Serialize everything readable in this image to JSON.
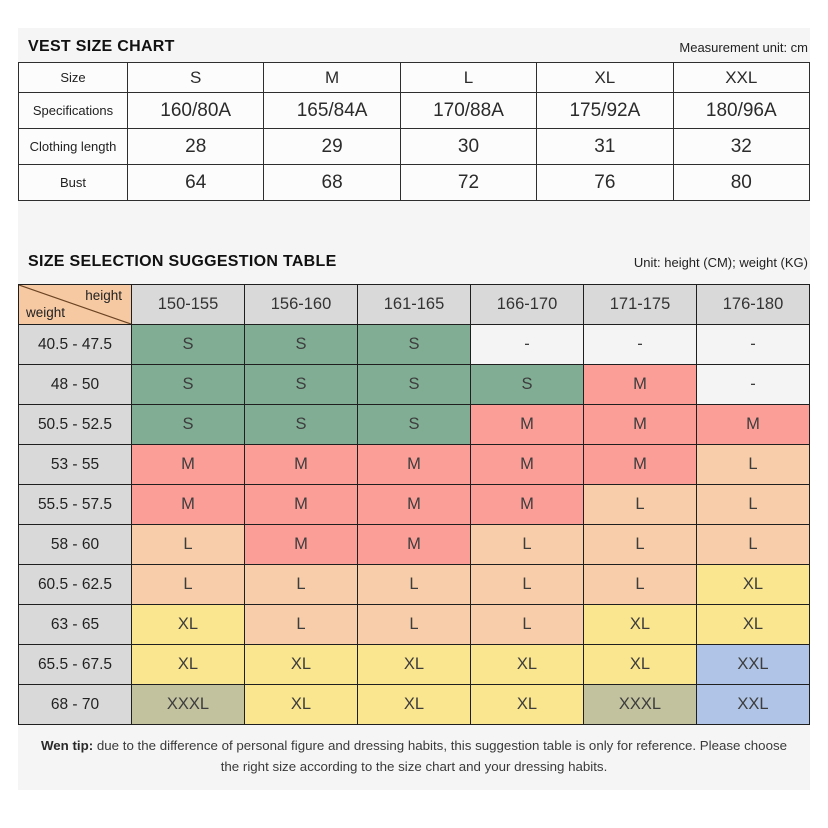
{
  "page": {
    "bg": "#ffffff",
    "panel_bg": "#f5f5f5"
  },
  "size_chart": {
    "title": "VEST SIZE CHART",
    "unit_note": "Measurement unit: cm",
    "rows": [
      {
        "label": "Size",
        "values": [
          "S",
          "M",
          "L",
          "XL",
          "XXL"
        ]
      },
      {
        "label": "Specifications",
        "values": [
          "160/80A",
          "165/84A",
          "170/88A",
          "175/92A",
          "180/96A"
        ]
      },
      {
        "label": "Clothing length",
        "values": [
          "28",
          "29",
          "30",
          "31",
          "32"
        ]
      },
      {
        "label": "Bust",
        "values": [
          "64",
          "68",
          "72",
          "76",
          "80"
        ]
      }
    ]
  },
  "suggestion_table": {
    "title": "SIZE SELECTION SUGGESTION TABLE",
    "unit_note": "Unit: height (CM); weight (KG)",
    "corner": {
      "top": "height",
      "bottom": "weight"
    },
    "columns": [
      "150-155",
      "156-160",
      "161-165",
      "166-170",
      "171-175",
      "176-180"
    ],
    "rows": [
      {
        "weight": "40.5 - 47.5",
        "cells": [
          "S",
          "S",
          "S",
          "-",
          "-",
          "-"
        ]
      },
      {
        "weight": "48 - 50",
        "cells": [
          "S",
          "S",
          "S",
          "S",
          "M",
          "-"
        ]
      },
      {
        "weight": "50.5 - 52.5",
        "cells": [
          "S",
          "S",
          "S",
          "M",
          "M",
          "M"
        ]
      },
      {
        "weight": "53 - 55",
        "cells": [
          "M",
          "M",
          "M",
          "M",
          "M",
          "L"
        ]
      },
      {
        "weight": "55.5 - 57.5",
        "cells": [
          "M",
          "M",
          "M",
          "M",
          "L",
          "L"
        ]
      },
      {
        "weight": "58 - 60",
        "cells": [
          "L",
          "M",
          "M",
          "L",
          "L",
          "L"
        ]
      },
      {
        "weight": "60.5 - 62.5",
        "cells": [
          "L",
          "L",
          "L",
          "L",
          "L",
          "XL"
        ]
      },
      {
        "weight": "63 - 65",
        "cells": [
          "XL",
          "L",
          "L",
          "L",
          "XL",
          "XL"
        ]
      },
      {
        "weight": "65.5 - 67.5",
        "cells": [
          "XL",
          "XL",
          "XL",
          "XL",
          "XL",
          "XXL"
        ]
      },
      {
        "weight": "68 - 70",
        "cells": [
          "XXXL",
          "XL",
          "XL",
          "XL",
          "XXXL",
          "XXL"
        ]
      }
    ],
    "size_colors": {
      "S": "#80ad94",
      "M": "#fb9e98",
      "L": "#f8cda9",
      "XL": "#fae68f",
      "XXL": "#afc4e6",
      "XXXL": "#c3c29f",
      "-": "#f4f4f4"
    },
    "header_bg": "#d9d9d9",
    "corner_bg": "#f6c9a3"
  },
  "tip": {
    "label": "Wen tip:",
    "text": "due to the difference of personal figure and dressing habits, this suggestion table is only for reference. Please choose the right size according to the size chart and your dressing habits."
  }
}
